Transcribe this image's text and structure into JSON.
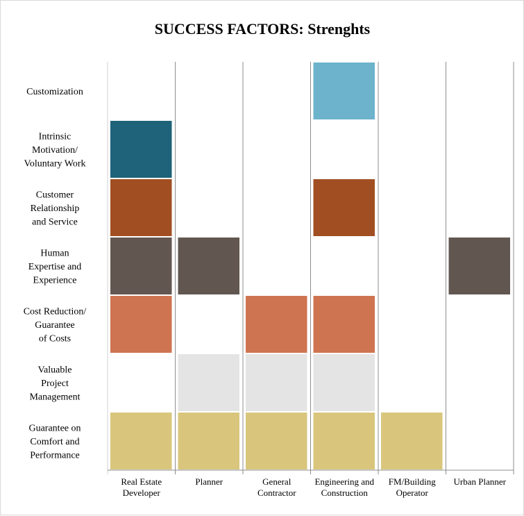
{
  "chart_data": {
    "type": "heatmap",
    "title": "SUCCESS FACTORS: Strenghts",
    "categories": [
      "Real Estate Developer",
      "Planner",
      "General Contractor",
      "Engineering and Construction",
      "FM/Building Operator",
      "Urban Planner"
    ],
    "category_lines": [
      [
        "Real Estate",
        "Developer"
      ],
      [
        "Planner"
      ],
      [
        "General",
        "Contractor"
      ],
      [
        "Engineering and",
        "Construction"
      ],
      [
        "FM/Building",
        "Operator"
      ],
      [
        "Urban Planner"
      ]
    ],
    "rows": [
      {
        "label": [
          "Customization"
        ],
        "color": "#6db3cc",
        "values": [
          0,
          0,
          0,
          1,
          0,
          0
        ]
      },
      {
        "label": [
          "Intrinsic",
          "Motivation/",
          "Voluntary Work"
        ],
        "color": "#1e6379",
        "values": [
          1,
          0,
          0,
          0,
          0,
          0
        ]
      },
      {
        "label": [
          "Customer",
          "Relationship",
          "and Service"
        ],
        "color": "#a14f22",
        "values": [
          1,
          0,
          0,
          1,
          0,
          0
        ]
      },
      {
        "label": [
          "Human",
          "Expertise and",
          "Experience"
        ],
        "color": "#625750",
        "values": [
          1,
          1,
          0,
          0,
          0,
          1
        ]
      },
      {
        "label": [
          "Cost Reduction/",
          "Guarantee",
          "of Costs"
        ],
        "color": "#cf7450",
        "values": [
          1,
          0,
          1,
          1,
          0,
          0
        ]
      },
      {
        "label": [
          "Valuable",
          "Project",
          "Management"
        ],
        "color": "#e4e4e4",
        "values": [
          0,
          1,
          1,
          1,
          0,
          0
        ]
      },
      {
        "label": [
          "Guarantee on",
          "Comfort and",
          "Performance"
        ],
        "color": "#d9c67c",
        "values": [
          1,
          1,
          1,
          1,
          1,
          0
        ]
      }
    ]
  }
}
